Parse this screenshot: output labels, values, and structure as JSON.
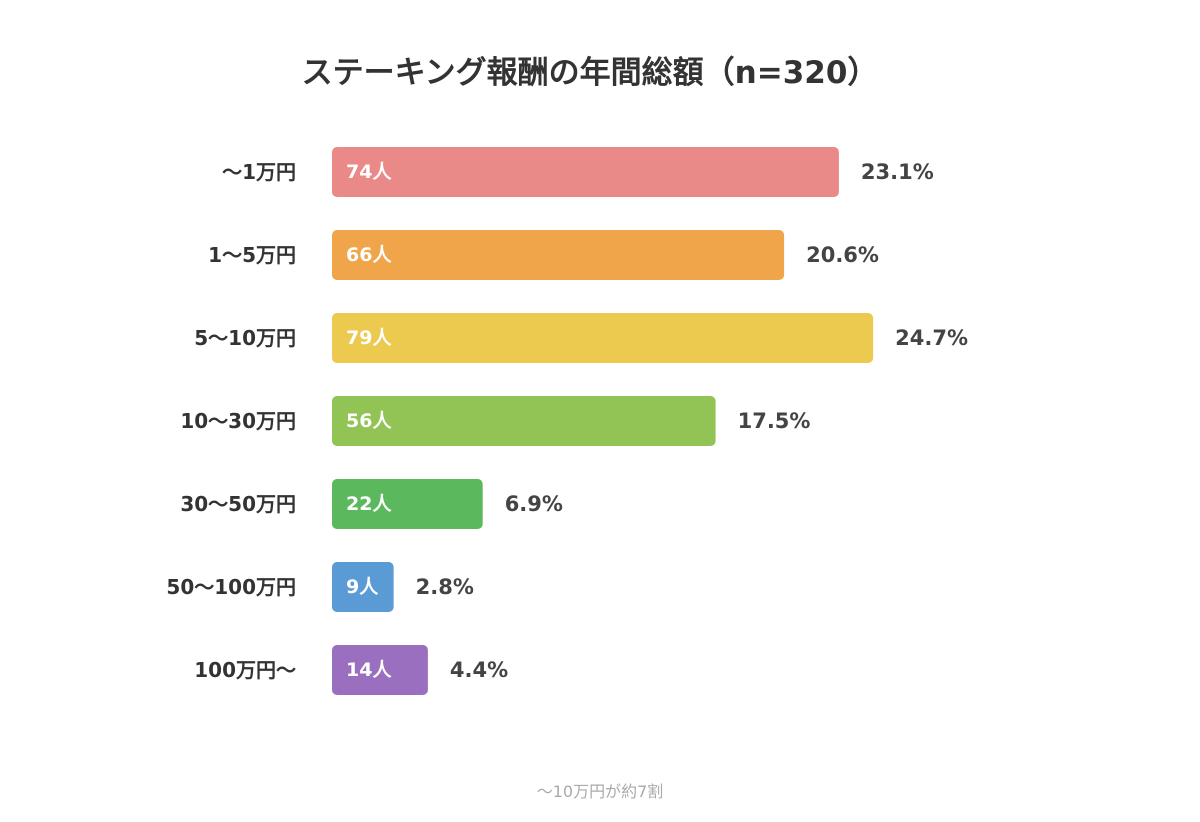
{
  "chart_data": {
    "type": "bar",
    "orientation": "horizontal",
    "title": "ステーキング報酬の年間総額（n=320）",
    "categories": [
      "〜1万円",
      "1〜5万円",
      "5〜10万円",
      "10〜30万円",
      "30〜50万円",
      "50〜100万円",
      "100万円〜"
    ],
    "values": [
      74,
      66,
      79,
      56,
      22,
      9,
      14
    ],
    "value_labels": [
      "74人",
      "66人",
      "79人",
      "56人",
      "22人",
      "9人",
      "14人"
    ],
    "percent_labels": [
      "23.1%",
      "20.6%",
      "24.7%",
      "17.5%",
      "6.9%",
      "2.8%",
      "4.4%"
    ],
    "colors": [
      "#e98a88",
      "#f0a54a",
      "#ecc94f",
      "#92c355",
      "#5cb85c",
      "#5b9bd5",
      "#9b6fbf"
    ],
    "grid": false,
    "legend": "none",
    "footnote": "〜10万円が約7割"
  }
}
